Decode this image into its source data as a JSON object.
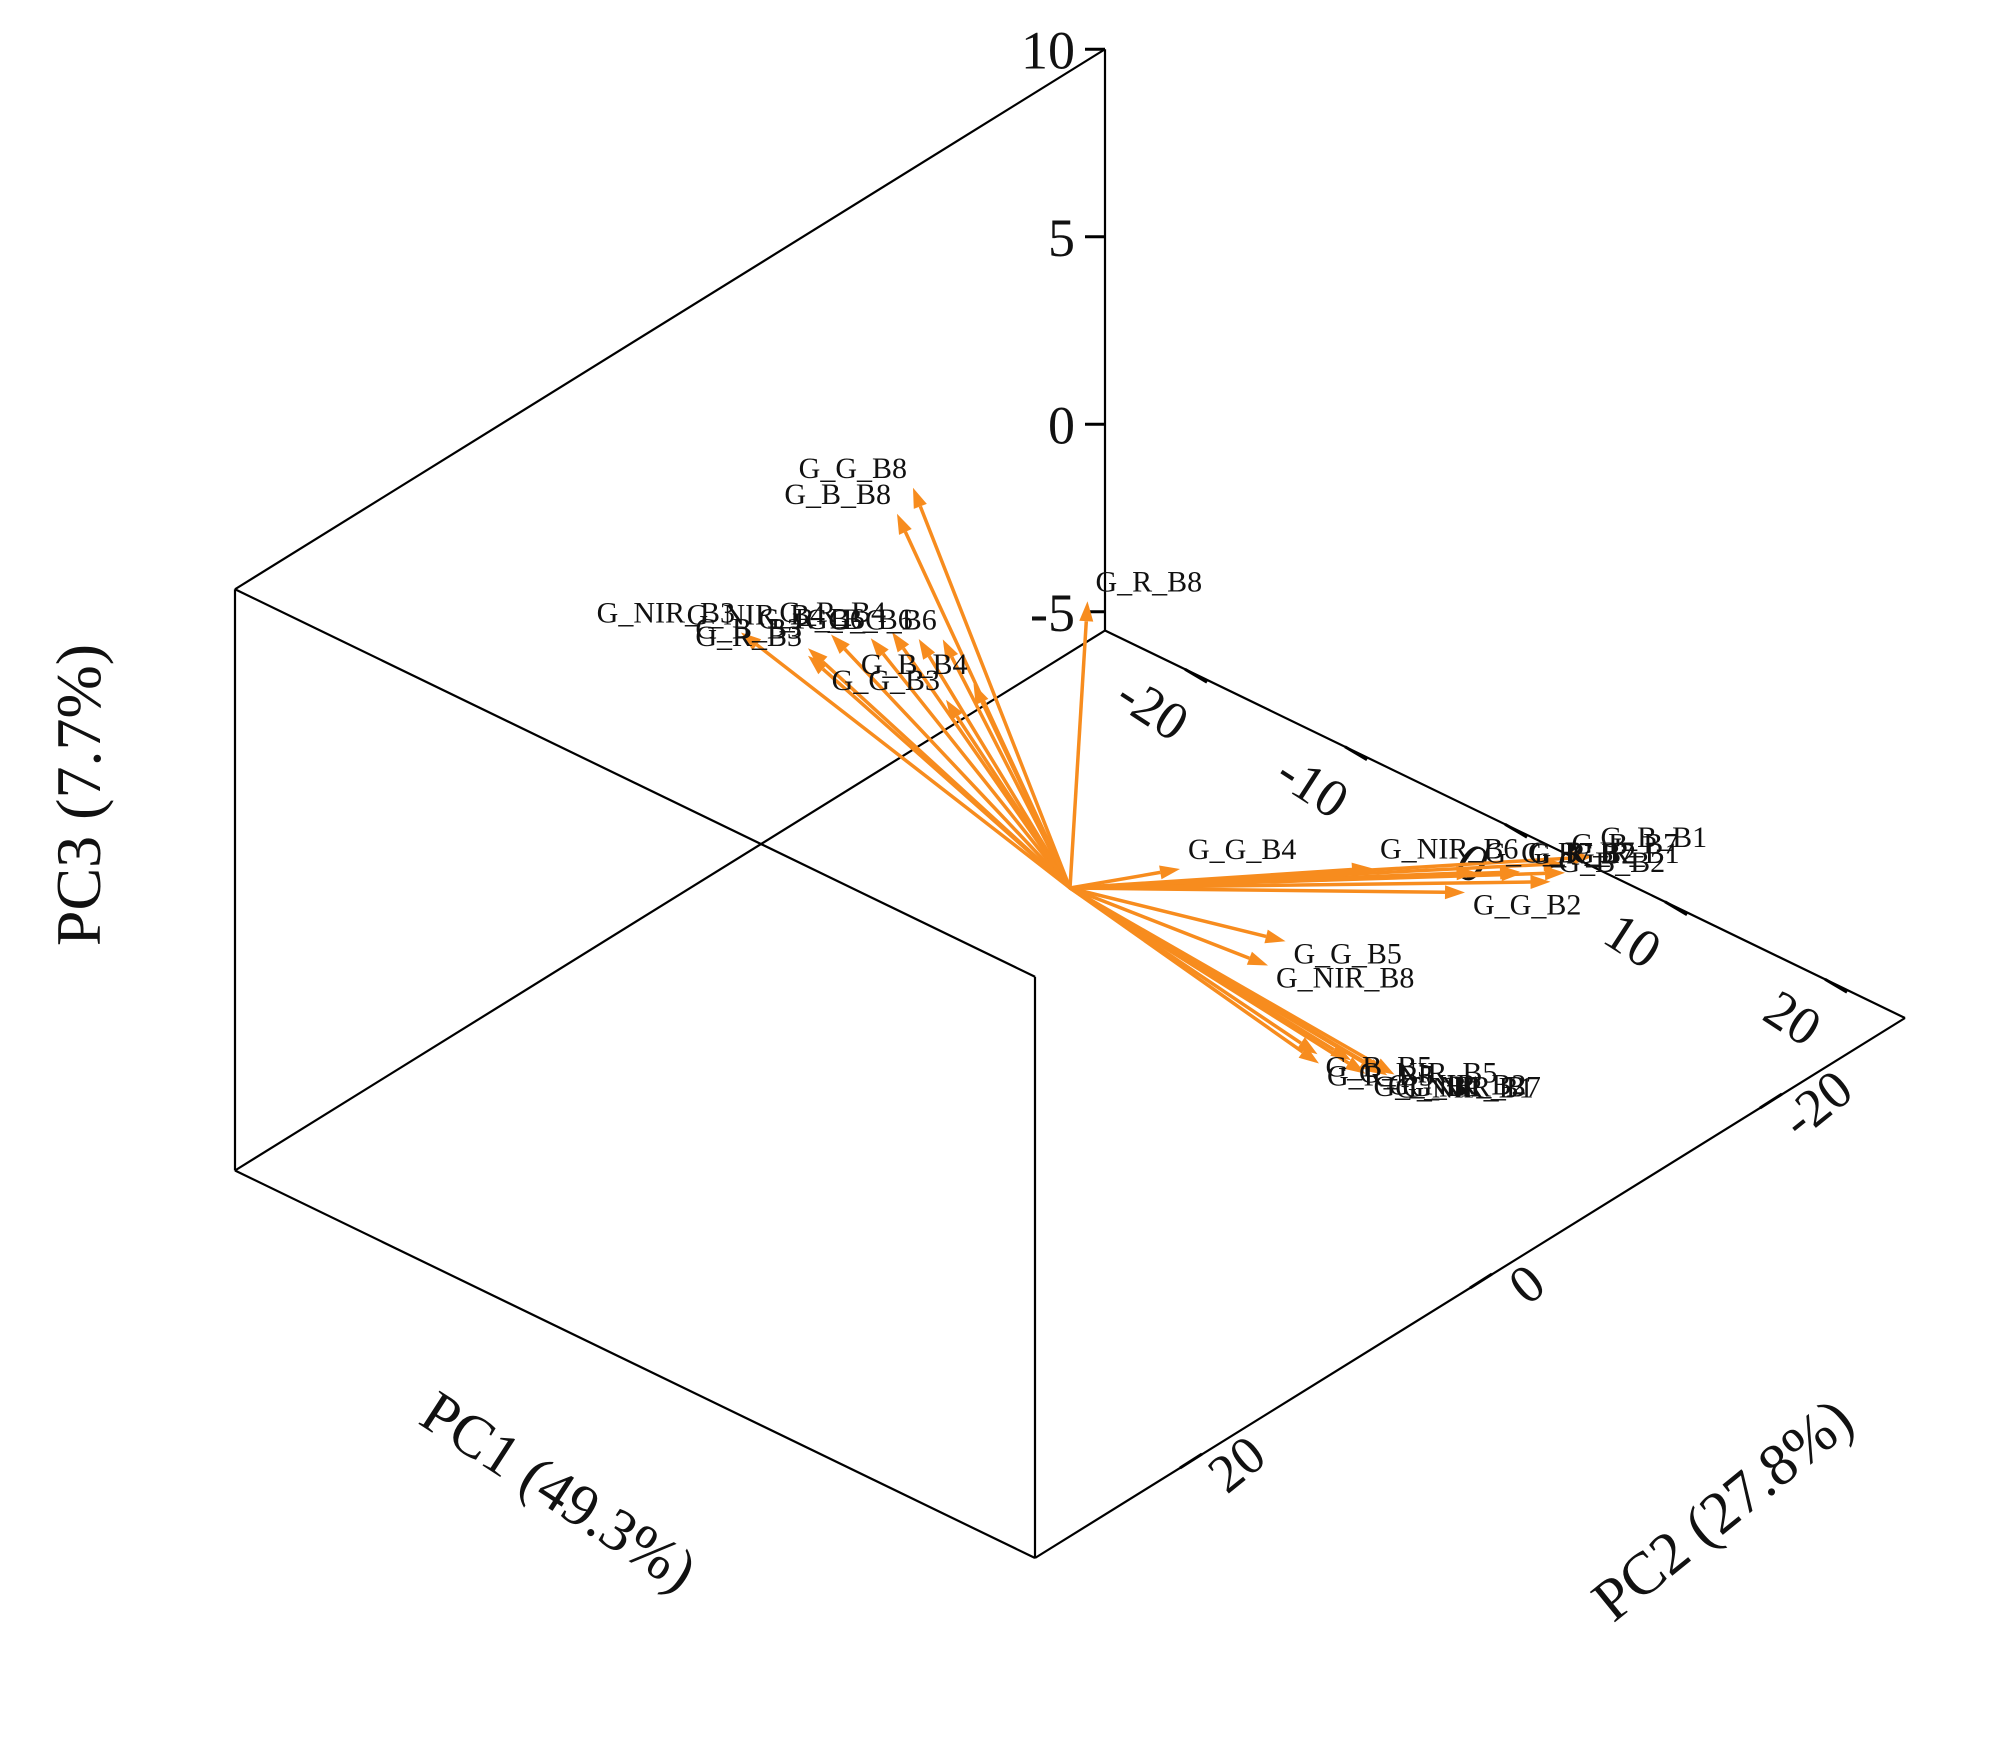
{
  "chart_data": {
    "type": "biplot-3d",
    "xlabel": "PC1 (49.3%)",
    "ylabel": "PC2 (27.8%)",
    "zlabel": "PC3 (7.7%)",
    "x_ticks": [
      -20,
      -10,
      0,
      10,
      20
    ],
    "y_ticks": [
      -20,
      0,
      20
    ],
    "z_ticks": [
      10,
      5,
      0,
      -5
    ],
    "xlim": [
      -25,
      25
    ],
    "ylim": [
      -30,
      30
    ],
    "zlim": [
      -5.5,
      10
    ],
    "colors": {
      "vectors": "#f78c1e",
      "box": "#000000"
    },
    "vectors": [
      {
        "label": "G_G_B8",
        "x": -8.0,
        "y": 2.0,
        "z": 9.5
      },
      {
        "label": "G_B_B8",
        "x": -9.0,
        "y": 2.0,
        "z": 8.6
      },
      {
        "label": "G_R_B8",
        "x": 2.0,
        "y": 1.0,
        "z": 8.3
      },
      {
        "label": "G_G_B6",
        "x": -7.5,
        "y": 0.5,
        "z": 5.2
      },
      {
        "label": "G_B_B6",
        "x": -9.0,
        "y": 0.5,
        "z": 4.9
      },
      {
        "label": "G_R_B6",
        "x": -12.0,
        "y": 0.5,
        "z": 4.3
      },
      {
        "label": "G_G_B5",
        "x": 18.0,
        "y": 5.0,
        "z": 3.5
      },
      {
        "label": "G_NIR_B8",
        "x": 16.0,
        "y": 4.0,
        "z": 2.2
      },
      {
        "label": "G_NIR_B5",
        "x": 23.0,
        "y": 6.0,
        "z": 1.6
      },
      {
        "label": "G_R_B5",
        "x": 21.0,
        "y": 6.0,
        "z": 1.1
      },
      {
        "label": "G_G_B1",
        "x": 23.0,
        "y": 5.0,
        "z": 1.0
      },
      {
        "label": "G_B_B5",
        "x": 20.0,
        "y": 5.0,
        "z": 0.9
      },
      {
        "label": "G_NIR_B2",
        "x": 23.0,
        "y": 4.0,
        "z": 0.8
      },
      {
        "label": "G_NIR_B1",
        "x": 23.0,
        "y": 3.5,
        "z": 0.6
      },
      {
        "label": "G_NIR_B7",
        "x": 23.0,
        "y": 3.0,
        "z": 0.5
      },
      {
        "label": "G_B_B3",
        "x": -20.0,
        "y": -4.0,
        "z": 1.3
      },
      {
        "label": "G_R_B3",
        "x": -20.0,
        "y": -4.0,
        "z": 1.1
      },
      {
        "label": "G_G_B3",
        "x": -15.0,
        "y": -8.0,
        "z": 0.0
      },
      {
        "label": "G_NIR_B3",
        "x": -26.0,
        "y": -6.0,
        "z": 0.0
      },
      {
        "label": "G_NIR_B4",
        "x": -24.0,
        "y": -10.0,
        "z": -0.6
      },
      {
        "label": "G_R_B4",
        "x": -22.0,
        "y": -12.0,
        "z": -0.6
      },
      {
        "label": "G_B_B4",
        "x": -16.0,
        "y": -11.0,
        "z": -0.5
      },
      {
        "label": "G_G_B4",
        "x": -4.0,
        "y": -12.0,
        "z": -3.2
      },
      {
        "label": "G_NIR_B6",
        "x": 8.0,
        "y": -12.0,
        "z": -0.7
      },
      {
        "label": "G_G_B2",
        "x": 12.0,
        "y": -14.0,
        "z": -1.0
      },
      {
        "label": "G_G_B7",
        "x": 10.0,
        "y": -17.0,
        "z": -1.6
      },
      {
        "label": "G_R_B2",
        "x": 11.0,
        "y": -19.0,
        "z": -1.9
      },
      {
        "label": "G_R_B7",
        "x": 10.0,
        "y": -20.0,
        "z": -2.3
      },
      {
        "label": "G_R_B1",
        "x": 11.0,
        "y": -22.0,
        "z": -2.6
      },
      {
        "label": "G_B_B2",
        "x": 11.0,
        "y": -21.0,
        "z": -2.6
      },
      {
        "label": "G_B_B7",
        "x": 10.0,
        "y": -23.0,
        "z": -2.8
      },
      {
        "label": "G_B_B1",
        "x": 10.0,
        "y": -25.0,
        "z": -3.1
      }
    ]
  }
}
